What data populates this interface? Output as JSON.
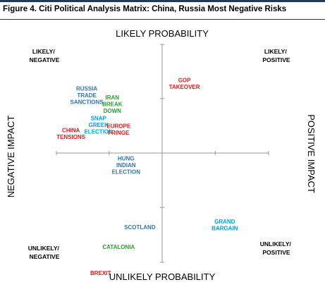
{
  "figure": {
    "title": "Figure 4. Citi Political Analysis Matrix: China, Russia Most Negative Risks"
  },
  "colors": {
    "axis": "#9a9a9a",
    "rule": "#1f3864",
    "text": "#000000"
  },
  "chart_data": {
    "type": "scatter",
    "axes": {
      "top": "LIKELY PROBABILITY",
      "bottom": "UNLIKELY PROBABILITY",
      "left": "NEGATIVE IMPACT",
      "right": "POSITIVE IMPACT"
    },
    "quadrants": {
      "top_left": [
        "LIKELY/",
        "NEGATIVE"
      ],
      "top_right": [
        "LIKELY/",
        "POSITIVE"
      ],
      "bottom_left": [
        "UNLIKELY/",
        "NEGATIVE"
      ],
      "bottom_right": [
        "UNLIKELY/",
        "POSITIVE"
      ]
    },
    "xlim": [
      -10,
      10
    ],
    "ylim": [
      -10,
      10
    ],
    "grid": false,
    "points": [
      {
        "lines": [
          "RUSSIA",
          "TRADE",
          "SANCTIONS"
        ],
        "impact": -7.1,
        "probability": 5.3,
        "color": "#2e75b6"
      },
      {
        "lines": [
          "IRAN",
          "BREAK",
          "DOWN"
        ],
        "impact": -4.7,
        "probability": 4.5,
        "color": "#2ca02c"
      },
      {
        "lines": [
          "SNAP",
          "GREEK",
          "ELECTION"
        ],
        "impact": -6.0,
        "probability": 2.6,
        "color": "#00a3e0"
      },
      {
        "lines": [
          "CHINA",
          "TENSIONS"
        ],
        "impact": -8.6,
        "probability": 1.8,
        "color": "#e41a1c"
      },
      {
        "lines": [
          "EUROPE",
          "FRINGE"
        ],
        "impact": -4.1,
        "probability": 2.2,
        "color": "#e41a1c"
      },
      {
        "lines": [
          "GOP",
          "TAKEOVER"
        ],
        "impact": 2.1,
        "probability": 6.4,
        "color": "#e41a1c"
      },
      {
        "lines": [
          "HUNG",
          "INDIAN",
          "ELECTION"
        ],
        "impact": -3.4,
        "probability": -1.1,
        "color": "#2e75b6"
      },
      {
        "lines": [
          "GRAND",
          "BARGAIN"
        ],
        "impact": 5.9,
        "probability": -6.6,
        "color": "#00a3e0"
      },
      {
        "lines": [
          "SCOTLAND"
        ],
        "impact": -2.1,
        "probability": -6.8,
        "color": "#2e75b6"
      },
      {
        "lines": [
          "CATALONIA"
        ],
        "impact": -4.1,
        "probability": -8.6,
        "color": "#2ca02c"
      },
      {
        "lines": [
          "BREXIT"
        ],
        "impact": -5.8,
        "probability": -11.0,
        "color": "#e41a1c"
      }
    ]
  }
}
